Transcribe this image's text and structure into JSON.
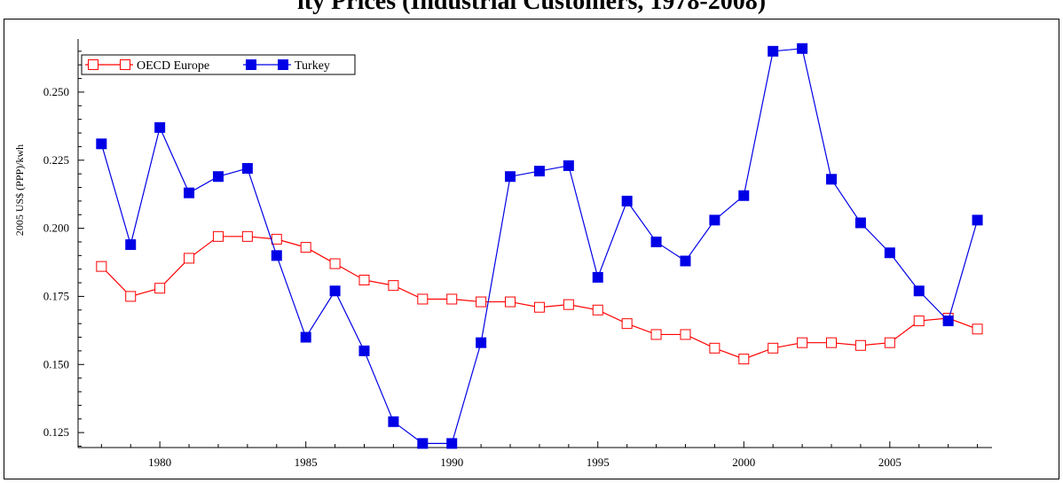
{
  "title": "ity Prices (Industrial Customers, 1978-2008)",
  "chart_data": {
    "type": "line",
    "ylabel": "2005 US$ (PPP)/kwh",
    "xlabel": "",
    "xlim": [
      1977.2,
      2008.5
    ],
    "ylim": [
      0.1195,
      0.2695
    ],
    "x_ticks": [
      1980,
      1985,
      1990,
      1995,
      2000,
      2005
    ],
    "y_ticks": [
      0.125,
      0.15,
      0.175,
      0.2,
      0.225,
      0.25
    ],
    "y_tick_labels": [
      "0.125",
      "0.150",
      "0.175",
      "0.200",
      "0.225",
      "0.250"
    ],
    "legend_position": "top-left",
    "grid": false,
    "x": [
      1978,
      1979,
      1980,
      1981,
      1982,
      1983,
      1984,
      1985,
      1986,
      1987,
      1988,
      1989,
      1990,
      1991,
      1992,
      1993,
      1994,
      1995,
      1996,
      1997,
      1998,
      1999,
      2000,
      2001,
      2002,
      2003,
      2004,
      2005,
      2006,
      2007,
      2008
    ],
    "series": [
      {
        "name": "OECD Europe",
        "color": "#ff0000",
        "marker": "open-square",
        "values": [
          0.186,
          0.175,
          0.178,
          0.189,
          0.197,
          0.197,
          0.196,
          0.193,
          0.187,
          0.181,
          0.179,
          0.174,
          0.174,
          0.173,
          0.173,
          0.171,
          0.172,
          0.17,
          0.165,
          0.161,
          0.161,
          0.156,
          0.152,
          0.156,
          0.158,
          0.158,
          0.157,
          0.158,
          0.166,
          0.167,
          0.163
        ]
      },
      {
        "name": "Turkey",
        "color": "#0000e6",
        "marker": "filled-square",
        "values": [
          0.231,
          0.194,
          0.237,
          0.213,
          0.219,
          0.222,
          0.19,
          0.16,
          0.177,
          0.155,
          0.129,
          0.121,
          0.121,
          0.158,
          0.219,
          0.221,
          0.223,
          0.182,
          0.21,
          0.195,
          0.188,
          0.203,
          0.212,
          0.265,
          0.266,
          0.218,
          0.202,
          0.191,
          0.177,
          0.166,
          0.203
        ]
      }
    ]
  }
}
